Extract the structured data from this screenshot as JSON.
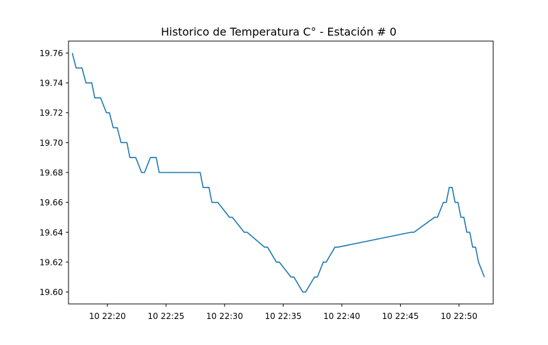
{
  "chart_data": {
    "type": "line",
    "title": "Historico de Temperatura C° - Estación # 0",
    "xlabel": "",
    "ylabel": "",
    "grid": false,
    "legend": "none",
    "line_color": "#1f77b4",
    "xlim_minutes": [
      22.278,
      22.882
    ],
    "ylim": [
      19.592,
      19.768
    ],
    "x_ticks": [
      {
        "value": "22:20",
        "label": "10 22:20"
      },
      {
        "value": "22:25",
        "label": "10 22:25"
      },
      {
        "value": "22:30",
        "label": "10 22:30"
      },
      {
        "value": "22:35",
        "label": "10 22:35"
      },
      {
        "value": "22:40",
        "label": "10 22:40"
      },
      {
        "value": "22:45",
        "label": "10 22:45"
      },
      {
        "value": "22:50",
        "label": "10 22:50"
      }
    ],
    "y_ticks": [
      {
        "value": 19.6,
        "label": "19.60"
      },
      {
        "value": 19.62,
        "label": "19.62"
      },
      {
        "value": 19.64,
        "label": "19.64"
      },
      {
        "value": 19.66,
        "label": "19.66"
      },
      {
        "value": 19.68,
        "label": "19.68"
      },
      {
        "value": 19.7,
        "label": "19.70"
      },
      {
        "value": 19.72,
        "label": "19.72"
      },
      {
        "value": 19.74,
        "label": "19.74"
      },
      {
        "value": 19.76,
        "label": "19.76"
      }
    ],
    "series": [
      {
        "x": [
          "22:17:00",
          "22:17:20",
          "22:17:50",
          "22:18:10",
          "22:18:40",
          "22:18:55",
          "22:19:25",
          "22:19:55",
          "22:20:10",
          "22:20:30",
          "22:20:50",
          "22:21:10",
          "22:21:40",
          "22:21:55",
          "22:22:25",
          "22:22:55",
          "22:23:10",
          "22:23:40",
          "22:24:10",
          "22:24:25",
          "22:27:55",
          "22:28:10",
          "22:28:40",
          "22:28:55",
          "22:29:25",
          "22:30:25",
          "22:30:40",
          "22:31:40",
          "22:31:55",
          "22:33:25",
          "22:33:40",
          "22:34:25",
          "22:34:40",
          "22:35:40",
          "22:35:55",
          "22:36:40",
          "22:36:55",
          "22:37:40",
          "22:37:55",
          "22:38:25",
          "22:38:40",
          "22:39:25",
          "22:39:40",
          "22:45:55",
          "22:46:10",
          "22:47:55",
          "22:48:10",
          "22:48:40",
          "22:48:55",
          "22:49:10",
          "22:49:25",
          "22:49:40",
          "22:49:55",
          "22:50:10",
          "22:50:25",
          "22:50:40",
          "22:50:55",
          "22:51:10",
          "22:51:25",
          "22:51:40",
          "22:52:10"
        ],
        "y": [
          19.76,
          19.75,
          19.75,
          19.74,
          19.74,
          19.73,
          19.73,
          19.72,
          19.72,
          19.71,
          19.71,
          19.7,
          19.7,
          19.69,
          19.69,
          19.68,
          19.68,
          19.69,
          19.69,
          19.68,
          19.68,
          19.67,
          19.67,
          19.66,
          19.66,
          19.65,
          19.65,
          19.64,
          19.64,
          19.63,
          19.63,
          19.62,
          19.62,
          19.61,
          19.61,
          19.6,
          19.6,
          19.61,
          19.61,
          19.62,
          19.62,
          19.63,
          19.63,
          19.64,
          19.64,
          19.65,
          19.65,
          19.66,
          19.66,
          19.67,
          19.67,
          19.66,
          19.66,
          19.65,
          19.65,
          19.64,
          19.64,
          19.63,
          19.63,
          19.62,
          19.61
        ]
      }
    ]
  }
}
